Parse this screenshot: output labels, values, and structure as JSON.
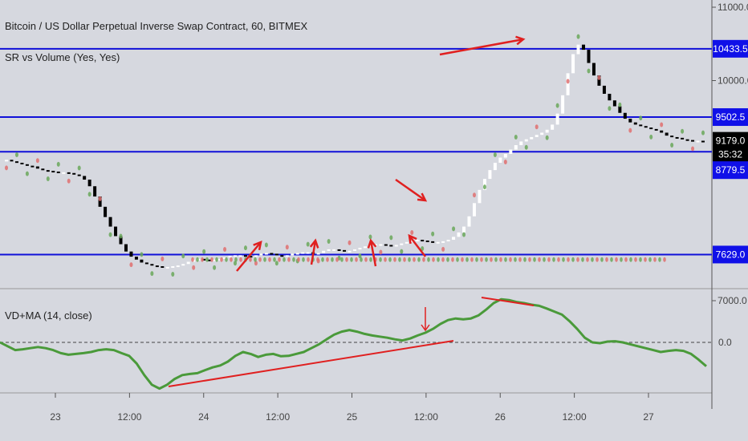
{
  "header": {
    "title": "Bitcoin / US Dollar Perpetual Inverse Swap Contract, 60, BITMEX",
    "indicator1": "SR vs Volume (Yes, Yes)",
    "indicator2": "VD+MA (14, close)"
  },
  "colors": {
    "background": "#d6d8df",
    "sr_line": "#1010d8",
    "arrow": "#e02020",
    "vd_line": "#4a9a3a",
    "badge_blue": "#1010e8",
    "badge_black": "#000000",
    "dot_green": "#6aa85a",
    "dot_red": "#e07070",
    "dot_purple": "#8b1a4a",
    "dot_orange": "#f09020",
    "diamond_teal": "#2ad48a"
  },
  "chart_data": [
    {
      "type": "line",
      "title": "Bitcoin / US Dollar Perpetual Inverse Swap Contract, 60, BITMEX",
      "ylim": [
        6700,
        11300
      ],
      "y_scale": "linear",
      "y_ticks": [
        "11000.0",
        "10000.0",
        "7000.0"
      ],
      "price_badges": [
        {
          "label": "10433.5",
          "value": 10433.5,
          "style": "blue"
        },
        {
          "label": "9502.5",
          "value": 9502.5,
          "style": "blue"
        },
        {
          "label": "9179.0",
          "value": 9179.0,
          "style": "black"
        },
        {
          "label": "35:32",
          "value": 8995,
          "style": "black"
        },
        {
          "label": "8779.5",
          "value": 8779.5,
          "style": "blue"
        },
        {
          "label": "7629.0",
          "value": 7629.0,
          "style": "blue"
        }
      ],
      "sr_levels": [
        10433.5,
        9502.5,
        9030,
        7629.0
      ],
      "x_ticks": [
        "23",
        "12:00",
        "24",
        "12:00",
        "25",
        "12:00",
        "26",
        "12:00",
        "27"
      ],
      "series": [
        {
          "values": [
            8920,
            8900,
            8880,
            8860,
            8840,
            8830,
            8800,
            8780,
            8770,
            8760,
            8750,
            8750,
            8740,
            8720,
            8700,
            8650,
            8560,
            8420,
            8280,
            8140,
            8010,
            7880,
            7770,
            7670,
            7600,
            7560,
            7520,
            7500,
            7480,
            7470,
            7460,
            7460,
            7470,
            7480,
            7500,
            7530,
            7560,
            7570,
            7560,
            7550,
            7560,
            7570,
            7590,
            7610,
            7620,
            7620,
            7610,
            7600,
            7620,
            7640,
            7650,
            7640,
            7620,
            7610,
            7620,
            7640,
            7650,
            7660,
            7660,
            7640,
            7650,
            7680,
            7700,
            7700,
            7690,
            7680,
            7680,
            7700,
            7720,
            7740,
            7760,
            7770,
            7770,
            7760,
            7750,
            7760,
            7780,
            7800,
            7820,
            7830,
            7820,
            7810,
            7800,
            7800,
            7810,
            7830,
            7870,
            7930,
            8010,
            8150,
            8330,
            8510,
            8660,
            8780,
            8880,
            8950,
            9000,
            9060,
            9120,
            9170,
            9200,
            9230,
            9260,
            9290,
            9330,
            9400,
            9550,
            9800,
            10100,
            10360,
            10490,
            10420,
            10240,
            10070,
            9930,
            9820,
            9730,
            9650,
            9560,
            9480,
            9430,
            9400,
            9380,
            9360,
            9340,
            9320,
            9290,
            9250,
            9230,
            9220,
            9200,
            9190,
            9180,
            9180,
            9179
          ]
        }
      ]
    },
    {
      "type": "line",
      "title": "VD+MA (14, close)",
      "y_ticks": [
        "0.0"
      ],
      "ylim": [
        -1.4,
        1.3
      ],
      "zero_line": 0,
      "series": [
        {
          "values": [
            0.0,
            -0.1,
            -0.2,
            -0.18,
            -0.15,
            -0.12,
            -0.15,
            -0.2,
            -0.28,
            -0.32,
            -0.3,
            -0.28,
            -0.25,
            -0.2,
            -0.18,
            -0.2,
            -0.28,
            -0.35,
            -0.55,
            -0.85,
            -1.1,
            -1.2,
            -1.1,
            -0.95,
            -0.85,
            -0.82,
            -0.8,
            -0.72,
            -0.65,
            -0.6,
            -0.5,
            -0.35,
            -0.25,
            -0.3,
            -0.38,
            -0.32,
            -0.3,
            -0.36,
            -0.35,
            -0.3,
            -0.25,
            -0.15,
            -0.05,
            0.08,
            0.2,
            0.28,
            0.32,
            0.28,
            0.22,
            0.18,
            0.15,
            0.12,
            0.08,
            0.05,
            0.1,
            0.18,
            0.25,
            0.35,
            0.48,
            0.58,
            0.62,
            0.6,
            0.62,
            0.7,
            0.85,
            1.02,
            1.12,
            1.1,
            1.05,
            1.02,
            0.98,
            0.95,
            0.88,
            0.8,
            0.72,
            0.55,
            0.35,
            0.12,
            0.0,
            -0.02,
            0.02,
            0.03,
            0.0,
            -0.05,
            -0.1,
            -0.15,
            -0.2,
            -0.25,
            -0.22,
            -0.2,
            -0.22,
            -0.3,
            -0.45,
            -0.62
          ]
        }
      ]
    }
  ]
}
